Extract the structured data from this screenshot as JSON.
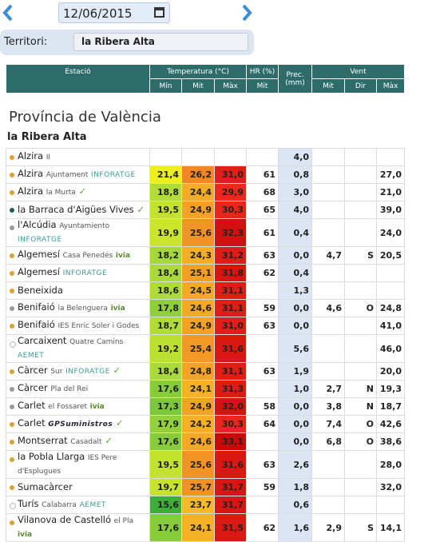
{
  "header": {
    "date": "12/06/2015",
    "territory_label": "Territori:",
    "territory": "la Ribera Alta"
  },
  "table": {
    "columns": {
      "station": "Estació",
      "temperature": "Temperatura (°C)",
      "humidity": "HR (%)",
      "precipitation": "Prec. (mm)",
      "wind": "Vent",
      "sub": [
        "Mín",
        "Mit",
        "Màx",
        "Mit",
        "Mit",
        "Dir",
        "Màx"
      ]
    },
    "province": "Província de València",
    "region": "la Ribera Alta",
    "rows": [
      {
        "name": "Alzira",
        "place": "II",
        "network": null,
        "dot": "#e0a030",
        "check": false,
        "values": [
          null,
          null,
          null,
          null,
          "4,0",
          null,
          null,
          null
        ]
      },
      {
        "name": "Alzira",
        "place": "Ajuntament",
        "network": "INFORATGE",
        "dot": "#e0a030",
        "check": false,
        "values": [
          "21,4",
          "26,2",
          "31,0",
          "61",
          "0,8",
          null,
          null,
          "27,0"
        ]
      },
      {
        "name": "Alzira",
        "place": "la Murta",
        "network": null,
        "dot": "#e0a030",
        "check": true,
        "values": [
          "18,8",
          "24,4",
          "29,9",
          "68",
          "3,0",
          null,
          null,
          "21,0"
        ]
      },
      {
        "name": "la Barraca d'Aigües Vives",
        "place": null,
        "network": null,
        "dot": "#1d5c5c",
        "check": true,
        "values": [
          "19,5",
          "24,9",
          "30,3",
          "65",
          "4,0",
          null,
          null,
          "39,0"
        ]
      },
      {
        "name": "l'Alcúdia",
        "place": "Ayuntamiento",
        "network": "INFORATGE",
        "dot": "#9a9a9a",
        "check": false,
        "values": [
          "19,9",
          "25,6",
          "32,3",
          "61",
          "0,4",
          null,
          null,
          "24,0"
        ]
      },
      {
        "name": "Algemesí",
        "place": "Casa Penedés",
        "network": "ivia",
        "dot": "#e0a030",
        "check": false,
        "values": [
          "18,2",
          "24,3",
          "31,2",
          "63",
          "0,0",
          "4,7",
          "S",
          "20,5"
        ]
      },
      {
        "name": "Algemesí",
        "place": null,
        "network": "INFORATGE",
        "dot": "#e0a030",
        "check": false,
        "values": [
          "18,4",
          "25,1",
          "31,8",
          "62",
          "0,4",
          null,
          null,
          null
        ]
      },
      {
        "name": "Beneixida",
        "place": null,
        "network": null,
        "dot": "#e0a030",
        "check": false,
        "values": [
          "18,6",
          "24,5",
          "31,1",
          null,
          "1,3",
          null,
          null,
          null
        ]
      },
      {
        "name": "Benifaió",
        "place": "la Belenguera",
        "network": "ivia",
        "dot": "#9a9a9a",
        "check": false,
        "values": [
          "17,8",
          "24,6",
          "31,1",
          "59",
          "0,0",
          "4,6",
          "O",
          "24,8"
        ]
      },
      {
        "name": "Benifaió",
        "place": "IES Enric Soler i Godes",
        "network": null,
        "dot": "#e0a030",
        "check": false,
        "values": [
          "18,7",
          "24,9",
          "31,0",
          "63",
          "0,0",
          null,
          null,
          "41,0"
        ]
      },
      {
        "name": "Carcaixent",
        "place": "Quatre Camins",
        "network": "AEMET",
        "dot": "open",
        "check": false,
        "values": [
          "19,2",
          "25,4",
          "31,6",
          null,
          "5,6",
          null,
          null,
          "46,0"
        ]
      },
      {
        "name": "Càrcer",
        "place": "Sur",
        "network": "INFORATGE",
        "dot": "#e0a030",
        "check": true,
        "values": [
          "18,4",
          "24,8",
          "31,1",
          "63",
          "1,9",
          null,
          null,
          "20,0"
        ]
      },
      {
        "name": "Càrcer",
        "place": "Pla del Rei",
        "network": null,
        "dot": "#9a9a9a",
        "check": false,
        "values": [
          "17,6",
          "24,1",
          "31,3",
          null,
          "1,0",
          "2,7",
          "N",
          "19,3"
        ]
      },
      {
        "name": "Carlet",
        "place": "el Fossaret",
        "network": "ivia",
        "dot": "#9a9a9a",
        "check": false,
        "values": [
          "17,3",
          "24,9",
          "32,0",
          "58",
          "0,0",
          "3,8",
          "N",
          "18,7"
        ]
      },
      {
        "name": "Carlet",
        "place": null,
        "network": "GPSuministros",
        "dot": "#e0a030",
        "check": true,
        "values": [
          "17,9",
          "24,2",
          "30,3",
          "64",
          "0,0",
          "7,4",
          "O",
          "42,6"
        ]
      },
      {
        "name": "Montserrat",
        "place": "Casadalt",
        "network": null,
        "dot": "#e0a030",
        "check": true,
        "values": [
          "17,6",
          "24,6",
          "33,1",
          null,
          "0,0",
          "6,8",
          "O",
          "38,6"
        ]
      },
      {
        "name": "la Pobla Llarga",
        "place": "IES Pere d'Esplugues",
        "network": null,
        "dot": "#e0a030",
        "check": false,
        "values": [
          "19,5",
          "25,6",
          "31,6",
          "63",
          "2,6",
          null,
          null,
          "28,0"
        ]
      },
      {
        "name": "Sumacàrcer",
        "place": null,
        "network": null,
        "dot": "#e0a030",
        "check": false,
        "values": [
          "19,7",
          "25,7",
          "31,7",
          "59",
          "1,8",
          null,
          null,
          "32,0"
        ]
      },
      {
        "name": "Turís",
        "place": "Calabarra",
        "network": "AEMET",
        "dot": "open",
        "check": false,
        "values": [
          "15,6",
          "23,7",
          "31,7",
          null,
          "0,6",
          null,
          null,
          null
        ]
      },
      {
        "name": "Vilanova de Castelló",
        "place": "el Pla",
        "network": "ivia",
        "dot": "#e0a030",
        "check": false,
        "values": [
          "17,6",
          "24,1",
          "31,5",
          "62",
          "1,6",
          "2,9",
          "S",
          "14,1"
        ]
      }
    ]
  }
}
